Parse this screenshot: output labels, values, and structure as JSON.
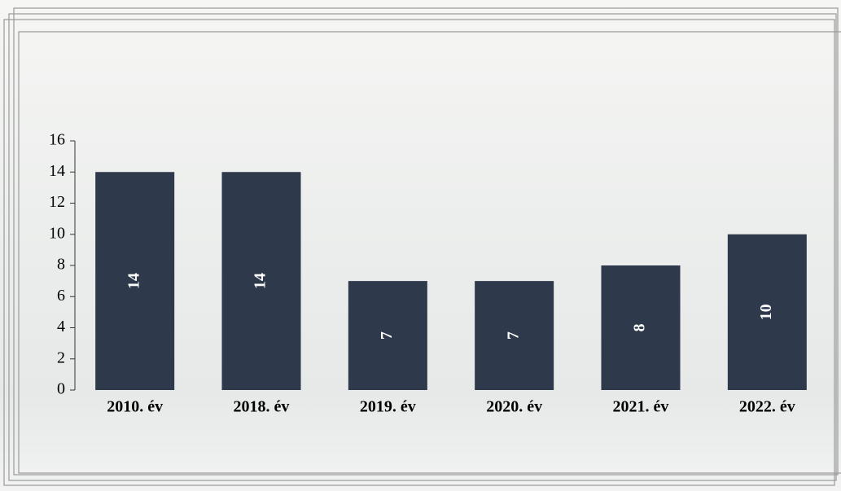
{
  "chart_data": {
    "type": "bar",
    "categories": [
      "2010. év",
      "2018. év",
      "2019. év",
      "2020. év",
      "2021. év",
      "2022. év"
    ],
    "values": [
      14,
      14,
      7,
      7,
      8,
      10
    ],
    "color": "#2e394b",
    "ylim": [
      0,
      16
    ],
    "yticks": [
      0,
      2,
      4,
      6,
      8,
      10,
      12,
      14,
      16
    ],
    "grid": false
  }
}
